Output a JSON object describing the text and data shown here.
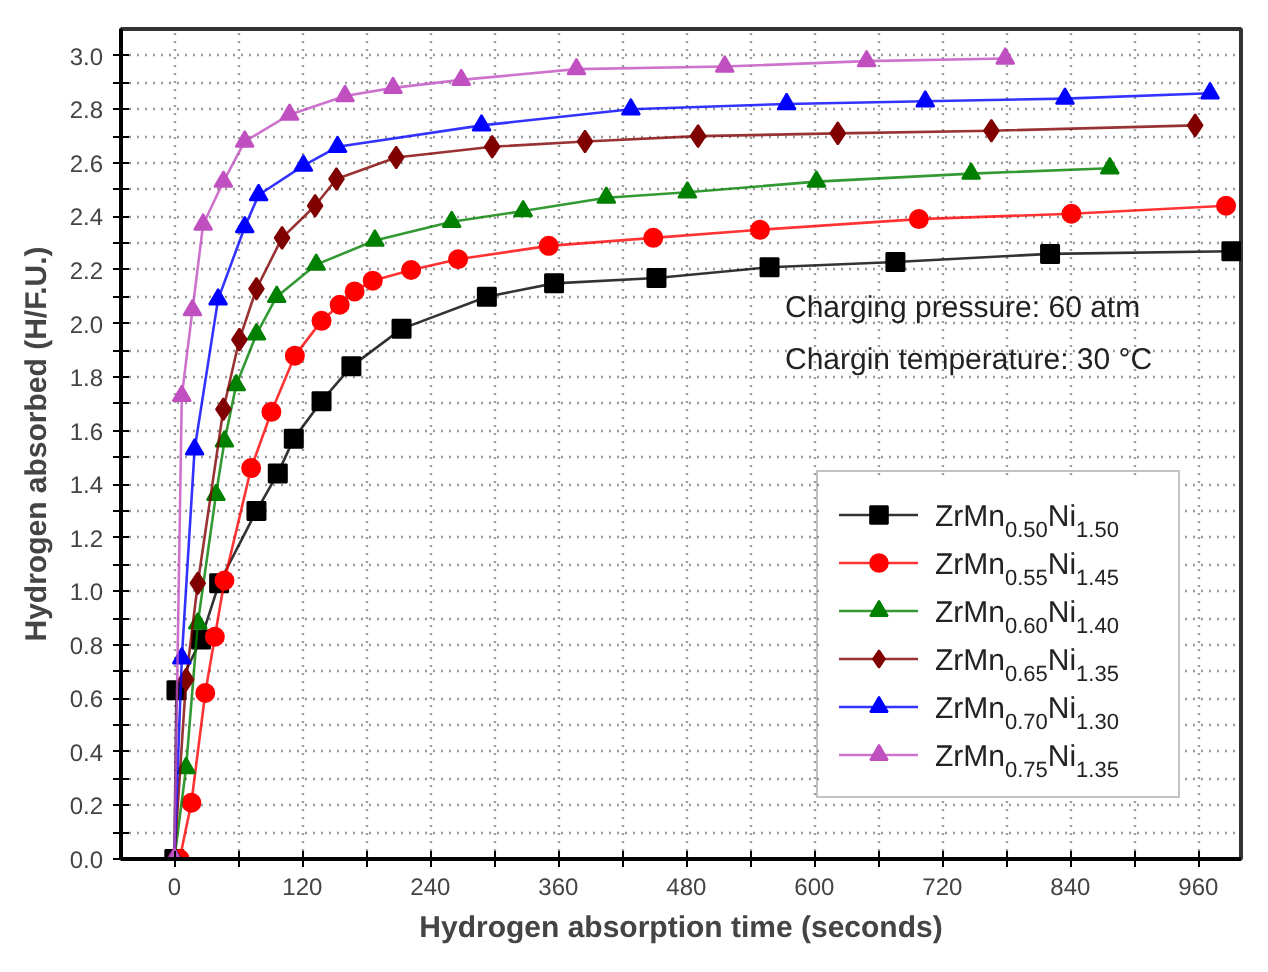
{
  "chart_data": {
    "type": "line",
    "xlabel": "Hydrogen absorption time (seconds)",
    "ylabel": "Hydrogen absorbed (H/F.U.)",
    "annotations": [
      "Charging pressure: 60 atm",
      "Chargin temperature: 30 °C"
    ],
    "xlim": [
      -50,
      1000
    ],
    "ylim": [
      0,
      3.1
    ],
    "xticks": [
      0,
      {
        "value": 60,
        "label": null
      },
      120,
      {
        "value": 180,
        "label": null
      },
      240,
      {
        "value": 300,
        "label": null
      },
      360,
      {
        "value": 420,
        "label": null
      },
      480,
      {
        "value": 540,
        "label": null
      },
      600,
      {
        "value": 660,
        "label": null
      },
      720,
      {
        "value": 780,
        "label": null
      },
      840,
      {
        "value": 900,
        "label": null
      },
      960
    ],
    "yticks": [
      {
        "value": 0,
        "label": "0.0"
      },
      {
        "value": 0.1,
        "label": null
      },
      {
        "value": 0.2,
        "label": "0.2"
      },
      {
        "value": 0.3,
        "label": null
      },
      {
        "value": 0.4,
        "label": "0.4"
      },
      {
        "value": 0.5,
        "label": null
      },
      {
        "value": 0.6,
        "label": "0.6"
      },
      {
        "value": 0.7,
        "label": null
      },
      {
        "value": 0.8,
        "label": "0.8"
      },
      {
        "value": 0.9,
        "label": null
      },
      {
        "value": 1.0,
        "label": "1.0"
      },
      {
        "value": 1.1,
        "label": null
      },
      {
        "value": 1.2,
        "label": "1.2"
      },
      {
        "value": 1.3,
        "label": null
      },
      {
        "value": 1.4,
        "label": "1.4"
      },
      {
        "value": 1.5,
        "label": null
      },
      {
        "value": 1.6,
        "label": "1.6"
      },
      {
        "value": 1.7,
        "label": null
      },
      {
        "value": 1.8,
        "label": "1.8"
      },
      {
        "value": 1.9,
        "label": null
      },
      {
        "value": 2.0,
        "label": "2.0"
      },
      {
        "value": 2.1,
        "label": null
      },
      {
        "value": 2.2,
        "label": "2.2"
      },
      {
        "value": 2.3,
        "label": null
      },
      {
        "value": 2.4,
        "label": "2.4"
      },
      {
        "value": 2.5,
        "label": null
      },
      {
        "value": 2.6,
        "label": "2.6"
      },
      {
        "value": 2.7,
        "label": null
      },
      {
        "value": 2.8,
        "label": "2.8"
      },
      {
        "value": 2.9,
        "label": null
      },
      {
        "value": 3.0,
        "label": "3.0"
      }
    ],
    "grid": true,
    "legend": "bottom right",
    "line_style": "solid",
    "series": [
      {
        "name": "ZrMn$_{0.50}$Ni$_{1.50}$",
        "color": "#000000",
        "marker": "square",
        "x": [
          0,
          2,
          25,
          42,
          77,
          97,
          112,
          138,
          166,
          213,
          293,
          356,
          452,
          558,
          676,
          821,
          991
        ],
        "values": [
          0,
          0.63,
          0.82,
          1.03,
          1.3,
          1.44,
          1.57,
          1.71,
          1.84,
          1.98,
          2.1,
          2.15,
          2.17,
          2.21,
          2.23,
          2.26,
          2.27
        ]
      },
      {
        "name": "ZrMn$_{0.55}$Ni$_{1.45}$",
        "color": "#ff0000",
        "marker": "circle",
        "x": [
          5,
          16,
          29,
          38,
          47,
          72,
          91,
          113,
          138,
          155,
          169,
          186,
          222,
          266,
          351,
          449,
          549,
          698,
          841,
          986
        ],
        "values": [
          0,
          0.21,
          0.62,
          0.83,
          1.04,
          1.46,
          1.67,
          1.88,
          2.01,
          2.07,
          2.12,
          2.16,
          2.2,
          2.24,
          2.29,
          2.32,
          2.35,
          2.39,
          2.41,
          2.44
        ]
      },
      {
        "name": "ZrMn$_{0.60}$Ni$_{1.40}$",
        "color": "#008000",
        "marker": "triangle",
        "x": [
          0,
          11,
          22,
          39,
          47,
          58,
          77,
          96,
          133,
          188,
          260,
          327,
          405,
          481,
          602,
          747,
          877
        ],
        "values": [
          0,
          0.34,
          0.88,
          1.36,
          1.56,
          1.77,
          1.96,
          2.1,
          2.22,
          2.31,
          2.38,
          2.42,
          2.47,
          2.49,
          2.53,
          2.56,
          2.58
        ]
      },
      {
        "name": "ZrMn$_{0.65}$Ni$_{1.35}$",
        "color": "#800000",
        "marker": "diamond",
        "x": [
          0,
          11,
          22,
          46,
          61,
          77,
          101,
          132,
          152,
          208,
          298,
          385,
          491,
          622,
          766,
          957
        ],
        "values": [
          0,
          0.67,
          1.03,
          1.68,
          1.94,
          2.13,
          2.32,
          2.44,
          2.54,
          2.62,
          2.66,
          2.68,
          2.7,
          2.71,
          2.72,
          2.74
        ]
      },
      {
        "name": "ZrMn$_{0.70}$Ni$_{1.30}$",
        "color": "#0000ff",
        "marker": "triangle",
        "x": [
          0,
          7,
          19,
          41,
          66,
          79,
          121,
          153,
          288,
          428,
          574,
          704,
          835,
          971
        ],
        "values": [
          0,
          0.75,
          1.53,
          2.09,
          2.36,
          2.48,
          2.59,
          2.66,
          2.74,
          2.8,
          2.82,
          2.83,
          2.84,
          2.86
        ]
      },
      {
        "name": "ZrMn$_{0.75}$Ni$_{1.35}$",
        "color": "#c050c0",
        "marker": "triangle",
        "x": [
          0,
          7,
          17,
          27,
          46,
          66,
          108,
          160,
          205,
          269,
          377,
          516,
          649,
          779
        ],
        "values": [
          0,
          1.73,
          2.05,
          2.37,
          2.53,
          2.68,
          2.78,
          2.85,
          2.88,
          2.91,
          2.95,
          2.96,
          2.98,
          2.99
        ]
      }
    ]
  }
}
